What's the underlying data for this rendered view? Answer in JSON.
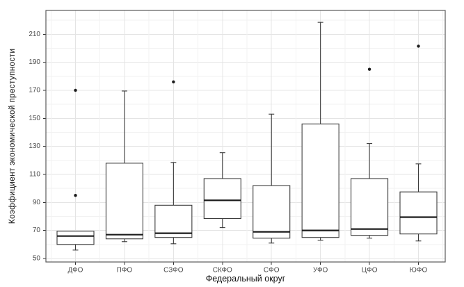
{
  "chart_data": {
    "type": "boxplot",
    "title": "",
    "xlabel": "Федеральный округ",
    "ylabel": "Коэффициент экономической преступности",
    "y_ticks": [
      50,
      70,
      90,
      110,
      130,
      150,
      170,
      190,
      210
    ],
    "ylim": [
      47.5,
      227
    ],
    "grid": "major+minor, horizontal and vertical",
    "legend": "none",
    "categories": [
      "ДФО",
      "ПФО",
      "СЗФО",
      "СКФО",
      "СФО",
      "УФО",
      "ЦФО",
      "ЮФО"
    ],
    "boxes": [
      {
        "category": "ДФО",
        "whisker_low": 56,
        "q1": 60,
        "median": 66,
        "q3": 69.5,
        "whisker_high": 69.5,
        "outliers": [
          95,
          170
        ]
      },
      {
        "category": "ПФО",
        "whisker_low": 62,
        "q1": 64,
        "median": 67,
        "q3": 118,
        "whisker_high": 169.5,
        "outliers": []
      },
      {
        "category": "СЗФО",
        "whisker_low": 60.5,
        "q1": 65,
        "median": 68,
        "q3": 88,
        "whisker_high": 118.5,
        "outliers": [
          176
        ]
      },
      {
        "category": "СКФО",
        "whisker_low": 72,
        "q1": 78.5,
        "median": 91.5,
        "q3": 107,
        "whisker_high": 125.5,
        "outliers": []
      },
      {
        "category": "СФО",
        "whisker_low": 61,
        "q1": 64.5,
        "median": 69,
        "q3": 102,
        "whisker_high": 153,
        "outliers": []
      },
      {
        "category": "УФО",
        "whisker_low": 63,
        "q1": 65,
        "median": 70,
        "q3": 146,
        "whisker_high": 218.5,
        "outliers": []
      },
      {
        "category": "ЦФО",
        "whisker_low": 64.5,
        "q1": 66.5,
        "median": 71,
        "q3": 107,
        "whisker_high": 132,
        "outliers": [
          185
        ]
      },
      {
        "category": "ЮФО",
        "whisker_low": 62.5,
        "q1": 67.5,
        "median": 79.5,
        "q3": 97.5,
        "whisker_high": 117.5,
        "outliers": [
          201.5
        ]
      }
    ],
    "colors": {
      "background": "#ffffff",
      "panel_border": "#595959",
      "grid_major": "#e4e4e4",
      "grid_minor": "#f2f2f2",
      "box_stroke": "#3a3a3a",
      "median": "#1c1c1c",
      "outlier": "#1c1c1c",
      "tick_text": "#4a4a4a",
      "tick_mark": "#333333"
    }
  }
}
